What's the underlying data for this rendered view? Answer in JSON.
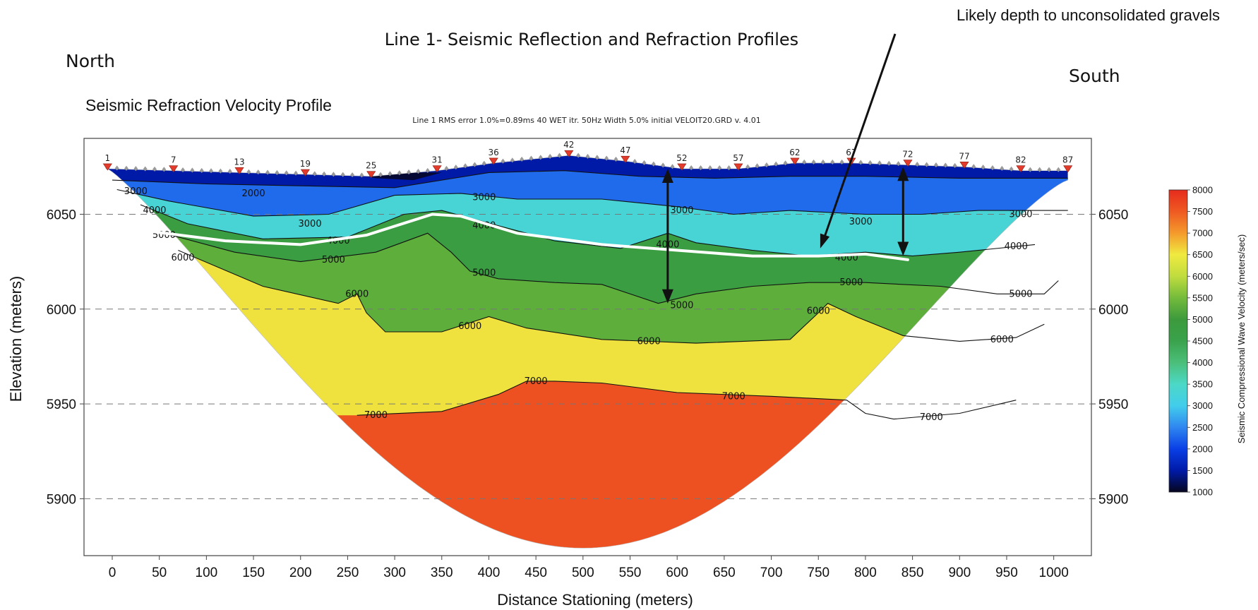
{
  "chart_data": {
    "type": "heatmap",
    "title": "Line 1- Seismic Reflection and Refraction Profiles",
    "subtitle": "Seismic Refraction Velocity Profile",
    "note": "Line 1 RMS error 1.0%=0.89ms 40 WET itr. 50Hz Width 5.0% initial VELOIT20.GRD v. 4.01",
    "left_direction": "North",
    "right_direction": "South",
    "xlabel": "Distance Stationing (meters)",
    "ylabel": "Elevation (meters)",
    "colorbar_label": "Seismic Compressional Wave Velocity (meters/sec)",
    "annotation": "Likely depth to unconsolidated gravels",
    "xlim": [
      -30,
      1040
    ],
    "ylim": [
      5870,
      6090
    ],
    "x_ticks": [
      "0",
      "50",
      "100",
      "150",
      "200",
      "250",
      "300",
      "350",
      "400",
      "450",
      "500",
      "550",
      "600",
      "650",
      "700",
      "750",
      "800",
      "850",
      "900",
      "950",
      "1000"
    ],
    "y_ticks": [
      "6050",
      "6000",
      "5950",
      "5900"
    ],
    "colorbar": {
      "range": [
        1000,
        8000
      ],
      "ticks": [
        "8000",
        "7500",
        "7000",
        "6500",
        "6000",
        "5500",
        "5000",
        "4500",
        "4000",
        "3500",
        "3000",
        "2500",
        "2000",
        "1500",
        "1000"
      ],
      "colors": [
        {
          "v": 1000,
          "c": "#06061e"
        },
        {
          "v": 1500,
          "c": "#001aa8"
        },
        {
          "v": 2000,
          "c": "#0a3fe6"
        },
        {
          "v": 2500,
          "c": "#2f86f0"
        },
        {
          "v": 3000,
          "c": "#42cdec"
        },
        {
          "v": 3500,
          "c": "#4cd8c6"
        },
        {
          "v": 4000,
          "c": "#4bbf7a"
        },
        {
          "v": 4500,
          "c": "#3aa24c"
        },
        {
          "v": 5000,
          "c": "#3c9a3c"
        },
        {
          "v": 5500,
          "c": "#74bb3c"
        },
        {
          "v": 6000,
          "c": "#c0dc3e"
        },
        {
          "v": 6500,
          "c": "#f0ea40"
        },
        {
          "v": 7000,
          "c": "#f49a2c"
        },
        {
          "v": 7500,
          "c": "#ef5a22"
        },
        {
          "v": 8000,
          "c": "#e62b1d"
        }
      ]
    },
    "geophones": {
      "labels": [
        "1",
        "7",
        "13",
        "19",
        "25",
        "31",
        "36",
        "42",
        "47",
        "52",
        "57",
        "62",
        "67",
        "72",
        "77",
        "82",
        "87"
      ],
      "positions": [
        -5,
        65,
        135,
        205,
        275,
        345,
        405,
        485,
        545,
        605,
        665,
        725,
        785,
        845,
        905,
        965,
        1015
      ],
      "elevations": [
        6074,
        6073,
        6072,
        6071,
        6070,
        6073,
        6077,
        6081,
        6078,
        6074,
        6074,
        6077,
        6077,
        6076,
        6075,
        6073,
        6073
      ]
    },
    "contours": [
      {
        "value": 2000,
        "label": "2000",
        "points": [
          [
            0,
            6068
          ],
          [
            100,
            6066
          ],
          [
            200,
            6065
          ],
          [
            300,
            6064
          ],
          [
            400,
            6072
          ],
          [
            480,
            6073
          ],
          [
            560,
            6070
          ],
          [
            640,
            6069
          ],
          [
            720,
            6070
          ],
          [
            800,
            6070
          ],
          [
            900,
            6069
          ],
          [
            1015,
            6069
          ]
        ],
        "labels_at": [
          [
            150,
            6061
          ]
        ]
      },
      {
        "value": 3000,
        "label": "3000",
        "points": [
          [
            5,
            6063
          ],
          [
            60,
            6057
          ],
          [
            150,
            6049
          ],
          [
            230,
            6050
          ],
          [
            300,
            6060
          ],
          [
            370,
            6061
          ],
          [
            430,
            6058
          ],
          [
            520,
            6058
          ],
          [
            600,
            6054
          ],
          [
            660,
            6050
          ],
          [
            720,
            6052
          ],
          [
            800,
            6050
          ],
          [
            860,
            6050
          ],
          [
            920,
            6052
          ],
          [
            1000,
            6052
          ],
          [
            1015,
            6052
          ]
        ],
        "labels_at": [
          [
            25,
            6062
          ],
          [
            210,
            6045
          ],
          [
            395,
            6059
          ],
          [
            605,
            6052
          ],
          [
            795,
            6046
          ],
          [
            965,
            6050
          ]
        ]
      },
      {
        "value": 4000,
        "label": "4000",
        "points": [
          [
            30,
            6055
          ],
          [
            80,
            6045
          ],
          [
            160,
            6037
          ],
          [
            250,
            6038
          ],
          [
            310,
            6050
          ],
          [
            350,
            6052
          ],
          [
            410,
            6044
          ],
          [
            470,
            6036
          ],
          [
            540,
            6032
          ],
          [
            590,
            6040
          ],
          [
            620,
            6035
          ],
          [
            680,
            6031
          ],
          [
            740,
            6028
          ],
          [
            800,
            6030
          ],
          [
            850,
            6028
          ],
          [
            900,
            6030
          ],
          [
            980,
            6034
          ]
        ],
        "labels_at": [
          [
            45,
            6052
          ],
          [
            240,
            6036
          ],
          [
            395,
            6044
          ],
          [
            590,
            6034
          ],
          [
            780,
            6027
          ],
          [
            960,
            6033
          ]
        ]
      },
      {
        "value": 5000,
        "label": "5000",
        "points": [
          [
            55,
            6040
          ],
          [
            130,
            6030
          ],
          [
            200,
            6025
          ],
          [
            280,
            6030
          ],
          [
            335,
            6040
          ],
          [
            360,
            6030
          ],
          [
            380,
            6020
          ],
          [
            410,
            6016
          ],
          [
            470,
            6014
          ],
          [
            520,
            6013
          ],
          [
            580,
            6003
          ],
          [
            620,
            6008
          ],
          [
            680,
            6012
          ],
          [
            740,
            6014
          ],
          [
            800,
            6014
          ],
          [
            880,
            6012
          ],
          [
            940,
            6008
          ],
          [
            990,
            6008
          ],
          [
            1005,
            6015
          ]
        ],
        "labels_at": [
          [
            55,
            6039
          ],
          [
            235,
            6026
          ],
          [
            395,
            6019
          ],
          [
            605,
            6002
          ],
          [
            785,
            6014
          ],
          [
            965,
            6008
          ]
        ]
      },
      {
        "value": 6000,
        "label": "6000",
        "points": [
          [
            70,
            6031
          ],
          [
            160,
            6012
          ],
          [
            240,
            6003
          ],
          [
            260,
            6008
          ],
          [
            270,
            5998
          ],
          [
            290,
            5988
          ],
          [
            350,
            5988
          ],
          [
            400,
            5996
          ],
          [
            440,
            5990
          ],
          [
            520,
            5984
          ],
          [
            620,
            5982
          ],
          [
            720,
            5984
          ],
          [
            750,
            5998
          ],
          [
            760,
            6003
          ],
          [
            790,
            5996
          ],
          [
            840,
            5986
          ],
          [
            900,
            5983
          ],
          [
            960,
            5985
          ],
          [
            990,
            5992
          ]
        ],
        "labels_at": [
          [
            75,
            6027
          ],
          [
            260,
            6008
          ],
          [
            380,
            5991
          ],
          [
            570,
            5983
          ],
          [
            750,
            5999
          ],
          [
            945,
            5984
          ]
        ]
      },
      {
        "value": 7000,
        "label": "7000",
        "points": [
          [
            260,
            5944
          ],
          [
            350,
            5946
          ],
          [
            410,
            5955
          ],
          [
            440,
            5962
          ],
          [
            470,
            5962
          ],
          [
            520,
            5961
          ],
          [
            600,
            5956
          ],
          [
            700,
            5954
          ],
          [
            780,
            5952
          ],
          [
            800,
            5945
          ],
          [
            830,
            5942
          ],
          [
            900,
            5945
          ],
          [
            960,
            5952
          ]
        ],
        "labels_at": [
          [
            280,
            5944
          ],
          [
            450,
            5962
          ],
          [
            660,
            5954
          ],
          [
            870,
            5943
          ]
        ]
      }
    ],
    "interface": [
      [
        40,
        6041
      ],
      [
        120,
        6036
      ],
      [
        200,
        6034
      ],
      [
        270,
        6039
      ],
      [
        340,
        6050
      ],
      [
        370,
        6049
      ],
      [
        430,
        6040
      ],
      [
        520,
        6034
      ],
      [
        600,
        6031
      ],
      [
        680,
        6028
      ],
      [
        750,
        6028
      ],
      [
        800,
        6029
      ],
      [
        845,
        6026
      ]
    ]
  }
}
